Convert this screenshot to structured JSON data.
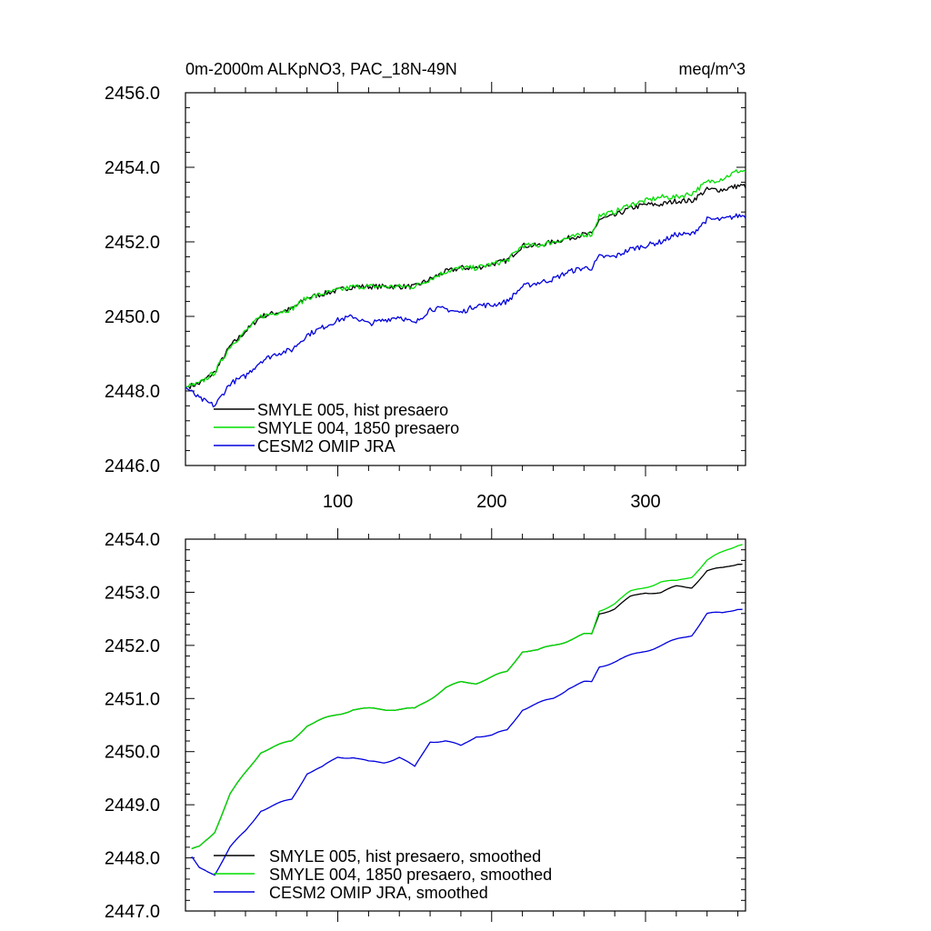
{
  "chart_data": [
    {
      "type": "line",
      "title": "0m-2000m ALKpNO3, PAC_18N-49N",
      "units": "meq/m^3",
      "xlabel": "",
      "ylabel": "",
      "xlim": [
        1,
        365
      ],
      "ylim": [
        2446.0,
        2456.0
      ],
      "yticks": [
        2446.0,
        2448.0,
        2450.0,
        2452.0,
        2454.0,
        2456.0
      ],
      "ytick_labels": [
        "2446.0",
        "2448.0",
        "2450.0",
        "2452.0",
        "2454.0",
        "2456.0"
      ],
      "xticks": [
        100,
        200,
        300
      ],
      "xtick_labels": [
        "100",
        "200",
        "300"
      ],
      "legend_position": "bottom-left",
      "noisy": true,
      "series": [
        {
          "name": "SMYLE 005, hist presaero",
          "color": "#000000",
          "x": [
            1,
            10,
            20,
            30,
            40,
            50,
            60,
            70,
            80,
            90,
            100,
            110,
            120,
            130,
            140,
            150,
            160,
            170,
            180,
            190,
            200,
            210,
            220,
            230,
            240,
            250,
            260,
            265,
            270,
            280,
            290,
            300,
            310,
            320,
            330,
            340,
            350,
            360,
            365
          ],
          "values": [
            2448.1,
            2448.2,
            2448.5,
            2449.2,
            2449.6,
            2450.0,
            2450.1,
            2450.2,
            2450.5,
            2450.6,
            2450.7,
            2450.8,
            2450.8,
            2450.8,
            2450.8,
            2450.8,
            2451.0,
            2451.2,
            2451.3,
            2451.3,
            2451.4,
            2451.5,
            2451.9,
            2451.9,
            2452.0,
            2452.1,
            2452.2,
            2452.2,
            2452.6,
            2452.7,
            2452.9,
            2453.0,
            2453.0,
            2453.1,
            2453.1,
            2453.4,
            2453.4,
            2453.5,
            2453.5
          ]
        },
        {
          "name": "SMYLE 004, 1850 presaero",
          "color": "#00dd00",
          "x": [
            1,
            10,
            20,
            30,
            40,
            50,
            60,
            70,
            80,
            90,
            100,
            110,
            120,
            130,
            140,
            150,
            160,
            170,
            180,
            190,
            200,
            210,
            220,
            230,
            240,
            250,
            260,
            265,
            270,
            280,
            290,
            300,
            310,
            320,
            330,
            340,
            350,
            360,
            365
          ],
          "values": [
            2448.1,
            2448.2,
            2448.5,
            2449.2,
            2449.6,
            2450.0,
            2450.1,
            2450.2,
            2450.5,
            2450.6,
            2450.7,
            2450.8,
            2450.8,
            2450.8,
            2450.8,
            2450.8,
            2451.0,
            2451.2,
            2451.3,
            2451.3,
            2451.4,
            2451.5,
            2451.9,
            2451.9,
            2452.0,
            2452.1,
            2452.2,
            2452.2,
            2452.7,
            2452.8,
            2453.0,
            2453.1,
            2453.2,
            2453.2,
            2453.3,
            2453.6,
            2453.7,
            2453.9,
            2453.9
          ]
        },
        {
          "name": "CESM2 OMIP JRA",
          "color": "#0000dd",
          "x": [
            1,
            10,
            20,
            30,
            40,
            50,
            60,
            70,
            80,
            90,
            100,
            110,
            120,
            130,
            140,
            150,
            160,
            170,
            180,
            190,
            200,
            210,
            220,
            230,
            240,
            250,
            260,
            265,
            270,
            280,
            290,
            300,
            310,
            320,
            330,
            340,
            350,
            360,
            365
          ],
          "values": [
            2448.1,
            2447.8,
            2447.6,
            2448.2,
            2448.4,
            2448.8,
            2449.0,
            2449.1,
            2449.5,
            2449.7,
            2449.9,
            2450.0,
            2449.8,
            2449.9,
            2450.0,
            2449.8,
            2450.2,
            2450.2,
            2450.1,
            2450.3,
            2450.3,
            2450.4,
            2450.8,
            2450.9,
            2451.0,
            2451.2,
            2451.3,
            2451.3,
            2451.6,
            2451.6,
            2451.8,
            2451.9,
            2452.0,
            2452.2,
            2452.2,
            2452.6,
            2452.6,
            2452.7,
            2452.7
          ]
        }
      ]
    },
    {
      "type": "line",
      "title": "",
      "xlabel": "",
      "ylabel": "",
      "xlim": [
        1,
        365
      ],
      "ylim": [
        2447.0,
        2454.0
      ],
      "yticks": [
        2447.0,
        2448.0,
        2449.0,
        2450.0,
        2451.0,
        2452.0,
        2453.0,
        2454.0
      ],
      "ytick_labels": [
        "2447.0",
        "2448.0",
        "2449.0",
        "2450.0",
        "2451.0",
        "2452.0",
        "2453.0",
        "2454.0"
      ],
      "xticks": [
        100,
        200,
        300
      ],
      "xtick_labels": [],
      "legend_position": "bottom-left",
      "noisy": false,
      "series": [
        {
          "name": "SMYLE 005, hist presaero, smoothed",
          "color": "#000000",
          "x": [
            5,
            10,
            20,
            30,
            40,
            50,
            60,
            70,
            80,
            90,
            100,
            110,
            120,
            130,
            140,
            150,
            160,
            170,
            180,
            190,
            200,
            210,
            220,
            230,
            240,
            250,
            260,
            265,
            270,
            280,
            290,
            300,
            310,
            320,
            330,
            340,
            350,
            360,
            363
          ],
          "values": [
            2448.15,
            2448.2,
            2448.5,
            2449.2,
            2449.6,
            2450.0,
            2450.1,
            2450.2,
            2450.5,
            2450.6,
            2450.7,
            2450.8,
            2450.8,
            2450.8,
            2450.8,
            2450.8,
            2451.0,
            2451.2,
            2451.3,
            2451.3,
            2451.4,
            2451.5,
            2451.9,
            2451.9,
            2452.0,
            2452.1,
            2452.2,
            2452.2,
            2452.6,
            2452.7,
            2452.9,
            2453.0,
            2453.0,
            2453.1,
            2453.1,
            2453.4,
            2453.45,
            2453.55,
            2453.55
          ]
        },
        {
          "name": "SMYLE 004, 1850 presaero, smoothed",
          "color": "#00dd00",
          "x": [
            5,
            10,
            20,
            30,
            40,
            50,
            60,
            70,
            80,
            90,
            100,
            110,
            120,
            130,
            140,
            150,
            160,
            170,
            180,
            190,
            200,
            210,
            220,
            230,
            240,
            250,
            260,
            265,
            270,
            280,
            290,
            300,
            310,
            320,
            330,
            340,
            350,
            360,
            363
          ],
          "values": [
            2448.15,
            2448.2,
            2448.5,
            2449.2,
            2449.6,
            2450.0,
            2450.1,
            2450.2,
            2450.5,
            2450.6,
            2450.7,
            2450.8,
            2450.8,
            2450.8,
            2450.8,
            2450.8,
            2451.0,
            2451.2,
            2451.3,
            2451.3,
            2451.4,
            2451.5,
            2451.9,
            2451.9,
            2452.0,
            2452.1,
            2452.2,
            2452.2,
            2452.65,
            2452.8,
            2453.0,
            2453.1,
            2453.2,
            2453.2,
            2453.3,
            2453.6,
            2453.75,
            2453.9,
            2453.92
          ]
        },
        {
          "name": "CESM2 OMIP JRA, smoothed",
          "color": "#0000dd",
          "x": [
            5,
            10,
            20,
            30,
            40,
            50,
            60,
            70,
            80,
            90,
            100,
            110,
            120,
            130,
            140,
            150,
            160,
            170,
            180,
            190,
            200,
            210,
            220,
            230,
            240,
            250,
            260,
            265,
            270,
            280,
            290,
            300,
            310,
            320,
            330,
            340,
            350,
            360,
            363
          ],
          "values": [
            2448.0,
            2447.8,
            2447.7,
            2448.2,
            2448.5,
            2448.9,
            2449.0,
            2449.1,
            2449.6,
            2449.7,
            2449.9,
            2449.9,
            2449.8,
            2449.8,
            2449.9,
            2449.7,
            2450.2,
            2450.2,
            2450.1,
            2450.3,
            2450.3,
            2450.4,
            2450.8,
            2450.9,
            2451.0,
            2451.2,
            2451.3,
            2451.3,
            2451.6,
            2451.7,
            2451.8,
            2451.9,
            2452.0,
            2452.1,
            2452.2,
            2452.6,
            2452.6,
            2452.7,
            2452.7
          ]
        }
      ]
    }
  ]
}
